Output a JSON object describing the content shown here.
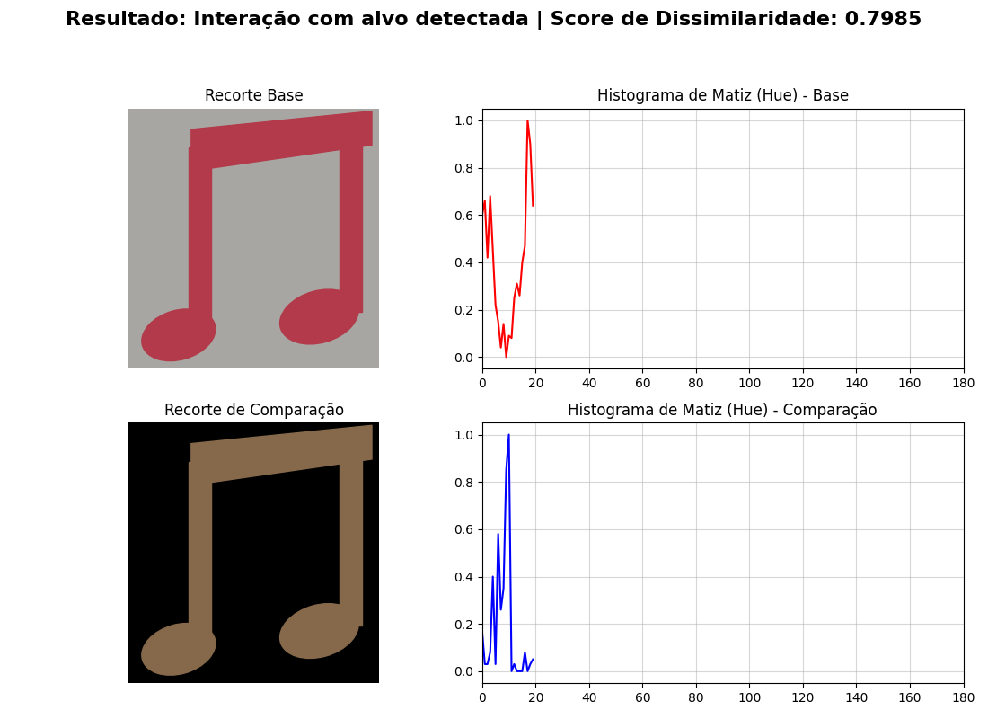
{
  "suptitle": "Resultado: Interação com alvo detectada | Score de Dissimilaridade: 0.7985",
  "images": [
    {
      "title": "Recorte Base"
    },
    {
      "title": "Recorte de Comparação"
    }
  ],
  "chart_data": [
    {
      "type": "line",
      "title": "Histograma de Matiz (Hue) - Base",
      "color": "red",
      "x": [
        0,
        1,
        2,
        3,
        4,
        5,
        6,
        7,
        8,
        9,
        10,
        11,
        12,
        13,
        14,
        15,
        16,
        17,
        18,
        19
      ],
      "values": [
        0.6,
        0.66,
        0.42,
        0.68,
        0.45,
        0.22,
        0.15,
        0.04,
        0.14,
        0.0,
        0.09,
        0.08,
        0.25,
        0.31,
        0.26,
        0.4,
        0.47,
        1.0,
        0.9,
        0.64
      ],
      "xlim": [
        0,
        180
      ],
      "xticks": [
        0,
        20,
        40,
        60,
        80,
        100,
        120,
        140,
        160,
        180
      ],
      "ylim": [
        -0.05,
        1.05
      ],
      "yticks": [
        0.0,
        0.2,
        0.4,
        0.6,
        0.8,
        1.0
      ],
      "grid": true
    },
    {
      "type": "line",
      "title": "Histograma de Matiz (Hue) - Comparação",
      "color": "blue",
      "x": [
        0,
        1,
        2,
        3,
        4,
        5,
        6,
        7,
        8,
        9,
        10,
        11,
        12,
        13,
        14,
        15,
        16,
        17,
        18,
        19
      ],
      "values": [
        0.17,
        0.03,
        0.03,
        0.08,
        0.4,
        0.03,
        0.58,
        0.26,
        0.35,
        0.85,
        1.0,
        0.0,
        0.03,
        0.0,
        0.0,
        0.0,
        0.08,
        0.0,
        0.03,
        0.05
      ],
      "xlim": [
        0,
        180
      ],
      "xticks": [
        0,
        20,
        40,
        60,
        80,
        100,
        120,
        140,
        160,
        180
      ],
      "ylim": [
        -0.05,
        1.05
      ],
      "yticks": [
        0.0,
        0.2,
        0.4,
        0.6,
        0.8,
        1.0
      ],
      "grid": true
    }
  ]
}
